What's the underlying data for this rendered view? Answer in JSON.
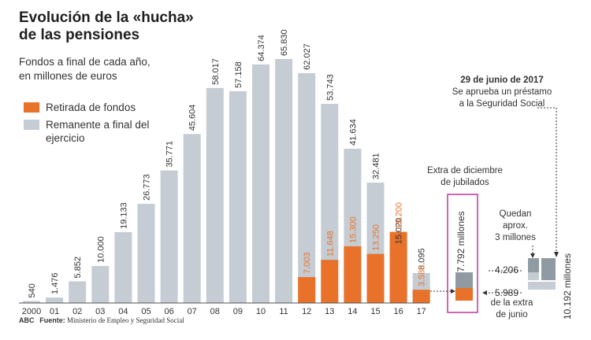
{
  "title_line1": "Evolución de la «hucha»",
  "title_line2": "de las pensiones",
  "subtitle_line1": "Fondos a final de cada año,",
  "subtitle_line2": "en millones de euros",
  "legend": [
    {
      "label": "Retirada de fondos",
      "color": "#e8722a"
    },
    {
      "label": "Remanente a final del ejercicio",
      "color": "#c5ccd3"
    }
  ],
  "colors": {
    "remaining": "#c5ccd3",
    "withdrawal": "#e8722a",
    "dark_gray": "#8f9aa3",
    "highlight": "#c0379b"
  },
  "chart_data": {
    "type": "bar",
    "categories": [
      "2000",
      "01",
      "02",
      "03",
      "04",
      "05",
      "06",
      "07",
      "08",
      "09",
      "10",
      "11",
      "12",
      "13",
      "14",
      "15",
      "16",
      "17"
    ],
    "series": [
      {
        "name": "Remanente a final del ejercicio",
        "values": [
          540,
          1476,
          5852,
          10000,
          19133,
          26773,
          35771,
          45604,
          58017,
          57158,
          64374,
          65830,
          62027,
          53743,
          41634,
          32481,
          15020,
          8095
        ],
        "labels": [
          "540",
          "1.476",
          "5.852",
          "10.000",
          "19.133",
          "26.773",
          "35.771",
          "45.604",
          "58.017",
          "57.158",
          "64.374",
          "65.830",
          "62.027",
          "53.743",
          "41.634",
          "32.481",
          "15.020",
          "8.095"
        ]
      },
      {
        "name": "Retirada de fondos",
        "values": [
          null,
          null,
          null,
          null,
          null,
          null,
          null,
          null,
          null,
          null,
          null,
          null,
          7003,
          11648,
          15300,
          13250,
          19200,
          3586
        ],
        "labels": [
          "",
          "",
          "",
          "",
          "",
          "",
          "",
          "",
          "",
          "",
          "",
          "",
          "7.003",
          "11.648",
          "15.300",
          "13.250",
          "19.200",
          "3.586"
        ]
      }
    ]
  },
  "annotations": {
    "extra_dec_line1": "Extra de diciembre",
    "extra_dec_line2": "de jubilados",
    "extra_dec_value": "7.792 millones",
    "june_date": "29 de junio de 2017",
    "june_line1": "Se aprueba un préstamo",
    "june_line2": "a la Seguridad Social",
    "quedan_line1": "Quedan",
    "quedan_line2": "aprox.",
    "quedan_line3": "3 millones",
    "value_4206": "4.206",
    "value_5989": "5.989",
    "extra_junio_line1": "de la extra",
    "extra_junio_line2": "de junio",
    "loan_value": "10.192 millones"
  },
  "footer_brand": "ABC",
  "footer_source_label": "Fuente:",
  "footer_source": "Ministerio de Empleo y Seguridad Social"
}
